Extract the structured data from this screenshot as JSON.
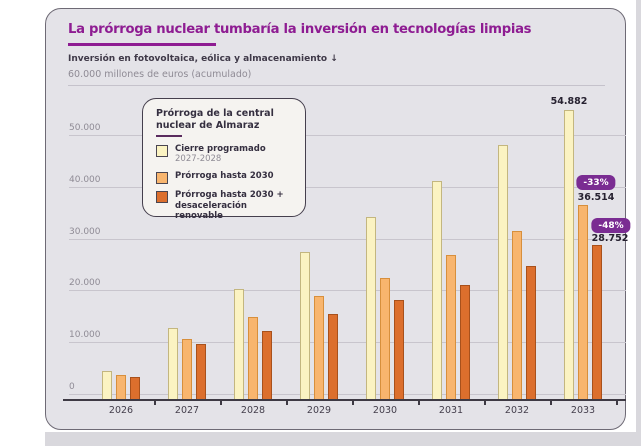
{
  "header": {
    "title": "La prórroga nuclear tumbaría la inversión en tecnologías limpias",
    "subtitle_bold": "Inversión en fotovoltaica, eólica y almacenamiento ↓",
    "subtitle_gray": "60.000 millones de euros (acumulado)"
  },
  "legend": {
    "title_line1": "Prórroga de la central",
    "title_line2": "nuclear de Almaraz",
    "items": [
      {
        "label": "Cierre programado",
        "sublabel": "2027-2028",
        "color": "#FBF3C2",
        "border": "#C3B67F"
      },
      {
        "label": "Prórroga hasta 2030",
        "color": "#F8B56E",
        "border": "#D78F3C"
      },
      {
        "label": "Prórroga hasta 2030 +",
        "label2": "desaceleración renovable",
        "color": "#DC6F2D",
        "border": "#A8511C"
      }
    ]
  },
  "chart_data": {
    "type": "bar",
    "title": "La prórroga nuclear tumbaría la inversión en tecnologías limpias",
    "ylabel": "60.000 millones de euros (acumulado)",
    "xlabel": "",
    "grid": true,
    "legend_position": "upper-left",
    "ylim": [
      0,
      56000
    ],
    "yticks": [
      0,
      10000,
      20000,
      30000,
      40000,
      50000
    ],
    "ytick_labels": [
      "0",
      "10.000",
      "20.000",
      "30.000",
      "40.000",
      "50.000"
    ],
    "categories": [
      "2026",
      "2027",
      "2028",
      "2029",
      "2030",
      "2031",
      "2032",
      "2033"
    ],
    "series": [
      {
        "key": "cierre",
        "name": "Cierre programado 2027-2028",
        "color": "#FBF3C2",
        "border": "#C3B67F",
        "values": [
          4400,
          12700,
          20200,
          27400,
          34200,
          41100,
          48100,
          54882
        ]
      },
      {
        "key": "prorroga",
        "name": "Prórroga hasta 2030",
        "color": "#F8B56E",
        "border": "#D78F3C",
        "values": [
          3700,
          10700,
          14900,
          18900,
          22400,
          26900,
          31400,
          36514
        ]
      },
      {
        "key": "desaceleracion",
        "name": "Prórroga hasta 2030 + desaceleración renovable",
        "color": "#DC6F2D",
        "border": "#A8511C",
        "values": [
          3300,
          9600,
          12200,
          15500,
          18100,
          21100,
          24800,
          28752
        ]
      }
    ],
    "annotations": [
      {
        "text": "54.882",
        "type": "value-label",
        "series": "cierre",
        "category": "2033"
      },
      {
        "text": "-33%",
        "type": "badge",
        "series": "prorroga",
        "category": "2033"
      },
      {
        "text": "36.514",
        "type": "value-label",
        "series": "prorroga",
        "category": "2033"
      },
      {
        "text": "-48%",
        "type": "badge",
        "series": "desaceleracion",
        "category": "2033"
      },
      {
        "text": "28.752",
        "type": "value-label",
        "series": "desaceleracion",
        "category": "2033"
      }
    ]
  },
  "colors": {
    "title_purple": "#8E1C92",
    "badge_purple": "#7A2C92",
    "card_background": "#E4E3E8",
    "page_gray": "#D9D8DD",
    "axis_dark": "#3E3A44",
    "grid_gray": "#C8C5CD",
    "text_dark": "#352F40",
    "text_gray": "#8F8B95"
  }
}
